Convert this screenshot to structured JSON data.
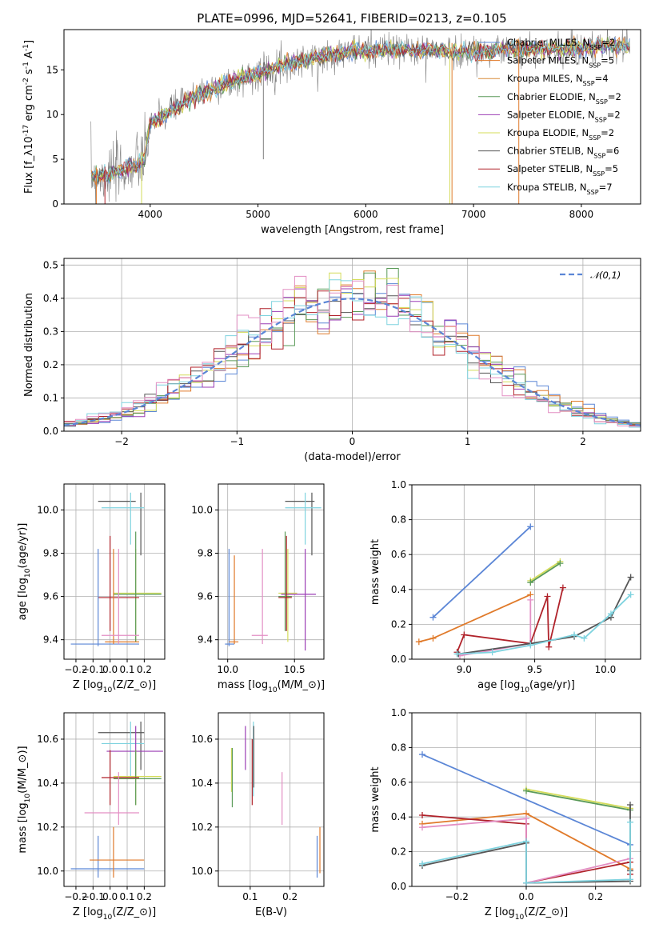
{
  "title": "PLATE=0996, MJD=52641, FIBERID=0213, z=0.105",
  "colors": {
    "Chabrier MILES": "#5b86d6",
    "Salpeter MILES": "#e07a2a",
    "Kroupa MILES": "#d98a38",
    "Chabrier ELODIE": "#5a9a58",
    "Salpeter ELODIE": "#9b3db5",
    "Kroupa ELODIE": "#d4dc5a",
    "Chabrier STELIB": "#555555",
    "Salpeter STELIB": "#b0222a",
    "Kroupa STELIB": "#7fd3df",
    "pink": "#e38fc4",
    "data": "#808080"
  },
  "chart_data": [
    {
      "id": "spectrum",
      "type": "line",
      "title": "PLATE=0996, MJD=52641, FIBERID=0213, z=0.105",
      "xlabel": "wavelength [Angstrom, rest frame]",
      "ylabel": "Flux [f$_\\lambda$10$^{-17}$ erg cm$^{-2}$ s$^{-1}$ A$^{-1}$]",
      "xlim": [
        3200,
        8550
      ],
      "ylim": [
        0,
        19.5
      ],
      "xticks": [
        4000,
        5000,
        6000,
        7000,
        8000
      ],
      "yticks": [
        0,
        5,
        10,
        15
      ],
      "legend": [
        "Chabrier MILES, N$_{SSP}$=2",
        "Salpeter MILES, N$_{SSP}$=5",
        "Kroupa MILES, N$_{SSP}$=4",
        "Chabrier ELODIE, N$_{SSP}$=2",
        "Salpeter ELODIE, N$_{SSP}$=2",
        "Kroupa ELODIE, N$_{SSP}$=2",
        "Chabrier STELIB, N$_{SSP}$=6",
        "Salpeter STELIB, N$_{SSP}$=5",
        "Kroupa STELIB, N$_{SSP}$=7"
      ],
      "legend_placement": "right",
      "continuum_x": [
        3450,
        3600,
        3800,
        3950,
        4000,
        4200,
        4400,
        4600,
        4800,
        5000,
        5200,
        5400,
        5600,
        5800,
        6000,
        6200,
        6400,
        6600,
        6800,
        7000,
        7200,
        7400,
        7600,
        7800,
        8000,
        8200,
        8450
      ],
      "continuum_y": [
        3.0,
        3.2,
        4.0,
        5.0,
        9.0,
        10.5,
        12.0,
        13.0,
        13.8,
        14.6,
        15.5,
        16.0,
        16.5,
        17.0,
        17.2,
        17.2,
        17.2,
        17.2,
        17.0,
        17.0,
        17.2,
        17.3,
        17.3,
        17.4,
        17.5,
        17.6,
        17.7
      ],
      "spikes_down": [
        [
          3500,
          0
        ],
        [
          3580,
          0
        ],
        [
          3920,
          0
        ],
        [
          5050,
          5
        ],
        [
          6780,
          0
        ],
        [
          6800,
          0
        ],
        [
          7420,
          0
        ]
      ],
      "grid": false
    },
    {
      "id": "residuals",
      "type": "area",
      "xlabel": "(data-model)/error",
      "ylabel": "Normed distribution",
      "xlim": [
        -2.5,
        2.5
      ],
      "ylim": [
        0,
        0.52
      ],
      "xticks": [
        -2,
        -1,
        0,
        1,
        2
      ],
      "yticks": [
        0.0,
        0.1,
        0.2,
        0.3,
        0.4,
        0.5
      ],
      "legend": [
        "$\\mathcal{N}(0,1)$"
      ],
      "legend_placement": "top-right",
      "bin_width": 0.1,
      "grid": true
    },
    {
      "id": "age-vs-Z",
      "type": "scatter",
      "xlabel": "Z [log$_{10}$($Z/Z_\\odot$)]",
      "ylabel": "age  [log$_{10}$($age/yr$)]",
      "xlim": [
        -0.27,
        0.32
      ],
      "ylim": [
        9.31,
        10.12
      ],
      "xticks": [
        -0.2,
        -0.1,
        0.0,
        0.1,
        0.2
      ],
      "yticks": [
        9.4,
        9.6,
        9.8,
        10.0
      ],
      "grid": true
    },
    {
      "id": "age-vs-mass",
      "type": "scatter",
      "xlabel": "mass [log$_{10}$($M/M_\\odot$)]",
      "ylabel": "",
      "xlim": [
        9.93,
        10.72
      ],
      "ylim": [
        9.31,
        10.12
      ],
      "xticks": [
        10.0,
        10.5
      ],
      "yticks": [
        9.4,
        9.6,
        9.8,
        10.0
      ],
      "grid": true
    },
    {
      "id": "weight-vs-age",
      "type": "line",
      "xlabel": "age  [log$_{10}$($age/yr$)]",
      "ylabel": "mass weight",
      "xlim": [
        8.63,
        10.25
      ],
      "ylim": [
        0,
        1.0
      ],
      "xticks": [
        9.0,
        9.5,
        10.0
      ],
      "yticks": [
        0.0,
        0.2,
        0.4,
        0.6,
        0.8,
        1.0
      ],
      "grid": true,
      "series": [
        {
          "name": "Chabrier MILES",
          "x": [
            8.78,
            9.47
          ],
          "y": [
            0.24,
            0.76
          ]
        },
        {
          "name": "Salpeter MILES",
          "x": [
            8.68,
            8.78,
            9.47
          ],
          "y": [
            0.1,
            0.12,
            0.37
          ]
        },
        {
          "name": "Kroupa ELODIE",
          "x": [
            9.47,
            9.68
          ],
          "y": [
            0.45,
            0.56
          ]
        },
        {
          "name": "Chabrier ELODIE",
          "x": [
            9.47,
            9.68
          ],
          "y": [
            0.44,
            0.55
          ]
        },
        {
          "name": "Salpeter STELIB",
          "x": [
            8.95,
            9.0,
            9.47,
            9.59,
            9.6,
            9.7
          ],
          "y": [
            0.04,
            0.14,
            0.09,
            0.36,
            0.07,
            0.41
          ]
        },
        {
          "name": "pink",
          "x": [
            8.97,
            9.47,
            9.47
          ],
          "y": [
            0.02,
            0.09,
            0.34
          ]
        },
        {
          "name": "Chabrier STELIB",
          "x": [
            8.96,
            9.47,
            9.78,
            10.04,
            10.18
          ],
          "y": [
            0.03,
            0.09,
            0.13,
            0.24,
            0.47
          ]
        },
        {
          "name": "Kroupa STELIB",
          "x": [
            8.95,
            9.2,
            9.47,
            9.78,
            9.85,
            10.04,
            10.18
          ],
          "y": [
            0.03,
            0.04,
            0.08,
            0.14,
            0.12,
            0.26,
            0.37
          ]
        }
      ]
    },
    {
      "id": "mass-vs-Z",
      "type": "scatter",
      "xlabel": "Z [log$_{10}$($Z/Z_\\odot$)]",
      "ylabel": "mass [log$_{10}$($M/M_\\odot$)]",
      "xlim": [
        -0.27,
        0.32
      ],
      "ylim": [
        9.93,
        10.72
      ],
      "xticks": [
        -0.2,
        -0.1,
        0.0,
        0.1,
        0.2
      ],
      "yticks": [
        10.0,
        10.2,
        10.4,
        10.6
      ],
      "grid": true
    },
    {
      "id": "mass-vs-ebv",
      "type": "scatter",
      "xlabel": "E(B-V)",
      "ylabel": "",
      "xlim": [
        0.02,
        0.285
      ],
      "ylim": [
        9.93,
        10.72
      ],
      "xticks": [
        0.1,
        0.2
      ],
      "yticks": [
        10.0,
        10.2,
        10.4,
        10.6
      ],
      "grid": true
    },
    {
      "id": "weight-vs-Z",
      "type": "line",
      "xlabel": "Z [log$_{10}$($Z/Z_\\odot$)]",
      "ylabel": "mass weight",
      "xlim": [
        -0.33,
        0.33
      ],
      "ylim": [
        0,
        1.0
      ],
      "xticks": [
        -0.2,
        0.0,
        0.2
      ],
      "yticks": [
        0.0,
        0.2,
        0.4,
        0.6,
        0.8,
        1.0
      ],
      "grid": true,
      "series": [
        {
          "name": "Chabrier MILES",
          "x": [
            -0.3,
            0.3
          ],
          "y": [
            0.76,
            0.24
          ]
        },
        {
          "name": "Salpeter MILES",
          "x": [
            -0.3,
            0.0,
            0.3,
            0.3
          ],
          "y": [
            0.36,
            0.42,
            0.1,
            0.14
          ]
        },
        {
          "name": "Kroupa ELODIE",
          "x": [
            0.0,
            0.3
          ],
          "y": [
            0.56,
            0.45
          ]
        },
        {
          "name": "Chabrier ELODIE",
          "x": [
            0.0,
            0.3
          ],
          "y": [
            0.55,
            0.44
          ]
        },
        {
          "name": "Salpeter STELIB",
          "x": [
            -0.3,
            0.0,
            0.0,
            0.3,
            0.3
          ],
          "y": [
            0.41,
            0.36,
            0.02,
            0.14,
            0.07
          ]
        },
        {
          "name": "pink",
          "x": [
            -0.3,
            0.0,
            0.0,
            0.3
          ],
          "y": [
            0.34,
            0.39,
            0.02,
            0.16
          ]
        },
        {
          "name": "Chabrier STELIB",
          "x": [
            -0.3,
            0.0,
            0.0,
            0.3,
            0.3,
            0.3
          ],
          "y": [
            0.12,
            0.25,
            0.02,
            0.03,
            0.47,
            0.09
          ]
        },
        {
          "name": "Kroupa STELIB",
          "x": [
            -0.3,
            0.0,
            0.0,
            0.3,
            0.3
          ],
          "y": [
            0.13,
            0.26,
            0.02,
            0.04,
            0.37
          ]
        }
      ]
    }
  ]
}
